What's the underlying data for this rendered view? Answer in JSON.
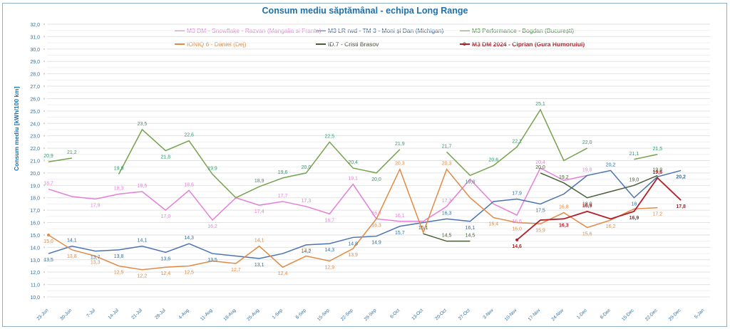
{
  "chart_data": {
    "type": "line",
    "title": "Consum mediu săptămânal - echipa Long Range",
    "xlabel": "",
    "ylabel": "Consum mediu [kWh/100 km]",
    "ylim": [
      10,
      32
    ],
    "ytick_step": 1,
    "ytick_labels": [
      "10,0",
      "11,0",
      "12,0",
      "13,0",
      "14,0",
      "15,0",
      "16,0",
      "17,0",
      "18,0",
      "19,0",
      "20,0",
      "21,0",
      "22,0",
      "23,0",
      "24,0",
      "25,0",
      "26,0",
      "27,0",
      "28,0",
      "29,0",
      "30,0",
      "31,0",
      "32,0"
    ],
    "grid": true,
    "legend_position": "top",
    "categories": [
      "23-Jun",
      "30-Jun",
      "7-Jul",
      "14-Jul",
      "21-Jul",
      "28-Jul",
      "4-Aug",
      "11-Aug",
      "18-Aug",
      "25-Aug",
      "1-Sep",
      "8-Sep",
      "15-Sep",
      "22-Sep",
      "29-Sep",
      "6-Oct",
      "13-Oct",
      "20-Oct",
      "27-Oct",
      "3-Nov",
      "10-Nov",
      "17-Nov",
      "24-Nov",
      "1-Dec",
      "8-Dec",
      "15-Dec",
      "22-Dec",
      "29-Dec",
      "5-Jan"
    ],
    "series": [
      {
        "name": "M3 DM - Snowflake - Razvan (Mangalia si Franta)",
        "color": "#e47fd8",
        "values": [
          18.7,
          18.1,
          17.9,
          18.3,
          18.5,
          17.0,
          18.6,
          16.2,
          18.0,
          17.4,
          17.7,
          17.3,
          16.7,
          19.1,
          16.3,
          16.1,
          16.1,
          17.3,
          19.5,
          17.5,
          16.6,
          20.4,
          19.4,
          19.8,
          null,
          null,
          null,
          null,
          null
        ],
        "labels": [
          "18,7",
          null,
          "17,9",
          "18,3",
          "18,5",
          "17,0",
          "18,6",
          "16,2",
          null,
          "17,4",
          "17,7",
          "17,3",
          "16,7",
          "19,1",
          "16,3",
          "16,1",
          null,
          "17,3",
          null,
          null,
          "16,6",
          "20,4",
          null,
          "19,8",
          null,
          null,
          null,
          null,
          null
        ]
      },
      {
        "name": "M3 LR rwd - TM 3 - Moni și Dan (Michigan)",
        "color": "#4a72b0",
        "values": [
          13.5,
          14.1,
          13.7,
          13.8,
          14.1,
          13.6,
          14.3,
          13.5,
          13.3,
          13.1,
          13.5,
          14.2,
          14.3,
          14.8,
          14.9,
          15.7,
          16.0,
          16.3,
          16.1,
          17.7,
          17.9,
          17.5,
          18.3,
          19.8,
          20.2,
          18.0,
          19.7,
          20.2,
          null
        ],
        "labels": [
          "13,5",
          "14,1",
          "13,7",
          "13,8",
          "14,1",
          "13,6",
          "14,3",
          "13,5",
          null,
          "13,1",
          null,
          "14,2",
          "14,3",
          "14,8",
          "14,9",
          "15,7",
          null,
          "16,3",
          "16,1",
          null,
          "17,9",
          "17,5",
          null,
          null,
          "20,2",
          "18",
          null,
          "20,2",
          null
        ]
      },
      {
        "name": "M3 Performance - Bogdan (București)",
        "color": "#77a24e",
        "values": [
          20.9,
          21.2,
          null,
          19.9,
          23.5,
          21.8,
          22.6,
          19.9,
          18.0,
          18.9,
          19.6,
          20.0,
          22.5,
          20.4,
          20.0,
          21.9,
          null,
          21.7,
          19.8,
          20.6,
          22.1,
          25.1,
          21.0,
          22.0,
          null,
          21.1,
          21.5,
          null,
          null
        ],
        "labels": [
          "20,9",
          "21,2",
          null,
          "19,9",
          "23,5",
          "21,8",
          "22,6",
          "19,9",
          null,
          "18,9",
          "19,6",
          "20,0",
          "22,5",
          "20,4",
          "20,0",
          "21,9",
          null,
          "21,7",
          "19,8",
          "20,6",
          "22,1",
          "25,1",
          null,
          "22,0",
          null,
          "21,1",
          "21,5",
          null,
          null
        ]
      },
      {
        "name": "IONIQ 6 - Daniel (Dej)",
        "color": "#e08a45",
        "values": [
          15.0,
          13.8,
          13.3,
          12.5,
          12.2,
          12.4,
          12.5,
          12.9,
          12.7,
          14.1,
          12.4,
          13.3,
          12.9,
          13.9,
          16.3,
          20.3,
          15.2,
          20.3,
          18.0,
          16.4,
          16.0,
          15.9,
          16.8,
          15.6,
          16.2,
          17.1,
          17.2,
          null,
          null
        ],
        "labels": [
          "15,0",
          "13,8",
          "13,3",
          "12,5",
          "12,2",
          "12,4",
          "12,5",
          null,
          "12,7",
          "14,1",
          "12,4",
          "13,3",
          "12,9",
          "13,9",
          "16,3",
          "20,3",
          null,
          "20,3",
          null,
          "16,4",
          "16,0",
          "15,9",
          "16,8",
          "15,6",
          "16,2",
          null,
          "17,2",
          null,
          null
        ]
      },
      {
        "name": "ID.7 - Cristi Brasov",
        "color": "#4b5e3a",
        "values": [
          null,
          null,
          null,
          null,
          null,
          null,
          null,
          null,
          null,
          null,
          null,
          null,
          null,
          null,
          null,
          null,
          15.1,
          14.5,
          14.5,
          null,
          null,
          20.0,
          19.2,
          18.0,
          18.5,
          19.0,
          19.8,
          null,
          null
        ],
        "labels": [
          null,
          null,
          null,
          null,
          null,
          null,
          null,
          null,
          null,
          null,
          null,
          null,
          null,
          null,
          null,
          null,
          "15,1",
          "14,5",
          "14,5",
          null,
          null,
          "20,0",
          "19,2",
          "18,0",
          null,
          "19,0",
          "19,8",
          null,
          null
        ]
      },
      {
        "name": "M3 DM 2024 - Ciprian (Gura Humorului)",
        "color": "#b0202a",
        "values": [
          null,
          null,
          null,
          null,
          null,
          null,
          null,
          null,
          null,
          null,
          null,
          null,
          null,
          null,
          null,
          null,
          null,
          null,
          null,
          null,
          14.6,
          16.2,
          16.3,
          16.9,
          16.3,
          16.9,
          19.6,
          17.8,
          null
        ],
        "labels": [
          null,
          null,
          null,
          null,
          null,
          null,
          null,
          null,
          null,
          null,
          null,
          null,
          null,
          null,
          null,
          null,
          null,
          null,
          null,
          null,
          "14,6",
          null,
          "16,3",
          "16,9",
          null,
          "16,9",
          "19,6",
          "17,8",
          null
        ]
      }
    ]
  }
}
